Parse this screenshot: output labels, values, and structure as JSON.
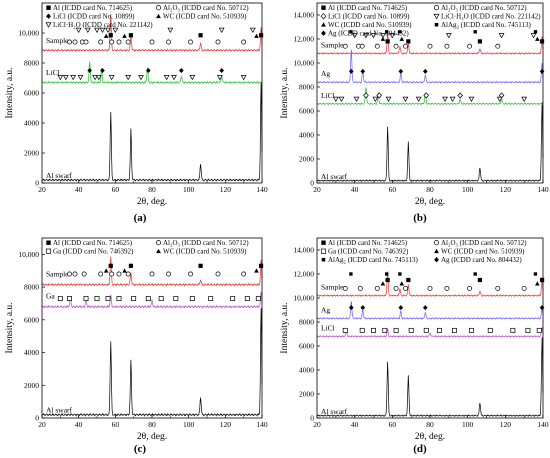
{
  "figure": {
    "colors": {
      "axis": "#000000",
      "al": "#000000",
      "sample": "#e8302c",
      "licl": "#22c42a",
      "ag": "#6a5cff",
      "ga": "#b34cc8"
    }
  },
  "chart_data": [
    {
      "panel": "(a)",
      "type": "line",
      "xlabel": "2θ, deg.",
      "ylabel": "Intensity, a.u.",
      "xlim": [
        20,
        140
      ],
      "ylim": [
        0,
        12000
      ],
      "xticks": [
        "20",
        "40",
        "60",
        "80",
        "100",
        "120",
        "140"
      ],
      "yticks": [
        "0",
        "2000",
        "4000",
        "6000",
        "8000",
        "10,000"
      ],
      "legend": [
        {
          "marker": "square",
          "text": "Al (ICDD card No. 714625)"
        },
        {
          "marker": "circle",
          "text": "Al₂O₃ (ICDD card No. 50712)"
        },
        {
          "marker": "diamond",
          "text": "LiCl (ICDD card No. 10899)"
        },
        {
          "marker": "triangle",
          "text": "WC (ICDD card No. 510939)"
        },
        {
          "marker": "triangle-down",
          "text": "LiCl·H₂O (ICDD card No. 221142)"
        }
      ],
      "series": [
        {
          "name": "Al swarf",
          "color_key": "al",
          "baseline": 200,
          "peaks": [
            [
              57.5,
              4550
            ],
            [
              68.5,
              3380
            ],
            [
              106.5,
              1100
            ],
            [
              139.5,
              6500
            ]
          ]
        },
        {
          "name": "Sample",
          "color_key": "sample",
          "baseline": 8850,
          "peaks": [
            [
              57.5,
              2400
            ],
            [
              68.5,
              1000
            ],
            [
              106.5,
              500
            ],
            [
              139.5,
              1500
            ]
          ]
        },
        {
          "name": "LiCl",
          "color_key": "licl",
          "baseline": 6700,
          "peaks": [
            [
              46,
              1400
            ],
            [
              52.5,
              900
            ],
            [
              77.5,
              1000
            ],
            [
              96,
              450
            ],
            [
              118,
              450
            ]
          ]
        }
      ],
      "markers": [
        {
          "marker": "square",
          "y": 9850,
          "x": [
            57.5,
            68.5,
            106.5,
            139.5
          ]
        },
        {
          "marker": "circle",
          "y": 9400,
          "x": [
            35,
            38,
            42,
            44,
            52,
            58,
            62,
            67,
            80,
            89,
            101,
            116,
            130
          ]
        },
        {
          "marker": "triangle-down",
          "y": 10200,
          "x": [
            40,
            45,
            50,
            53,
            56,
            60,
            90,
            118,
            135
          ]
        },
        {
          "marker": "triangle",
          "y": 9800,
          "x": [
            55,
            65,
            137
          ]
        },
        {
          "marker": "diamond",
          "y": 7500,
          "x": [
            46,
            53,
            78,
            96,
            118
          ]
        },
        {
          "marker": "triangle-down",
          "y": 7050,
          "x": [
            30,
            33,
            37,
            41,
            49,
            51,
            58,
            67,
            74,
            88,
            92,
            102,
            117,
            130
          ]
        }
      ]
    },
    {
      "panel": "(b)",
      "type": "line",
      "xlabel": "2θ, deg.",
      "ylabel": "Intensity, a.u.",
      "xlim": [
        20,
        140
      ],
      "ylim": [
        0,
        15000
      ],
      "xticks": [
        "20",
        "40",
        "60",
        "80",
        "100",
        "120",
        "140"
      ],
      "yticks": [
        "0",
        "2000",
        "4000",
        "6000",
        "8000",
        "10,000",
        "12,000",
        "14,000"
      ],
      "legend": [
        {
          "marker": "square",
          "text": "Al (ICDD card No. 714625)"
        },
        {
          "marker": "circle",
          "text": "Al₂O₃ (ICDD card No. 50712)"
        },
        {
          "marker": "diamond-open",
          "text": "LiCl (ICDD card No. 10899)"
        },
        {
          "marker": "triangle-down",
          "text": "LiCl·H₂O (ICDD card No. 221142)"
        },
        {
          "marker": "triangle",
          "text": "WC (ICDD card No. 510939)"
        },
        {
          "marker": "square-small",
          "text": "AlAg₂ (ICDD card No. 745113)"
        },
        {
          "marker": "diamond",
          "text": "Ag (ICDD card No. 804432)"
        }
      ],
      "series": [
        {
          "name": "Al swarf",
          "color_key": "al",
          "baseline": 200,
          "peaks": [
            [
              57.5,
              4500
            ],
            [
              68.5,
              3200
            ],
            [
              106.5,
              1100
            ],
            [
              139.5,
              6500
            ]
          ]
        },
        {
          "name": "Sample",
          "color_key": "sample",
          "baseline": 10800,
          "peaks": [
            [
              57.5,
              1800
            ],
            [
              64,
              600
            ],
            [
              68.5,
              800
            ],
            [
              106.5,
              400
            ],
            [
              139.5,
              1400
            ]
          ]
        },
        {
          "name": "Ag",
          "color_key": "ag",
          "baseline": 8400,
          "peaks": [
            [
              38.2,
              2800
            ],
            [
              44.3,
              1000
            ],
            [
              64.5,
              700
            ],
            [
              77.5,
              600
            ],
            [
              139.5,
              1600
            ]
          ]
        },
        {
          "name": "LiCl",
          "color_key": "licl",
          "baseline": 6600,
          "peaks": [
            [
              46,
              1400
            ],
            [
              52.5,
              900
            ],
            [
              77.5,
              900
            ],
            [
              96,
              400
            ],
            [
              118,
              400
            ]
          ]
        }
      ],
      "markers": [
        {
          "marker": "square",
          "y": 11800,
          "x": [
            57.5,
            68.5,
            106.5,
            139.5
          ]
        },
        {
          "marker": "circle",
          "y": 11400,
          "x": [
            35,
            42,
            44,
            52,
            62,
            67,
            80,
            89,
            101,
            116
          ]
        },
        {
          "marker": "triangle-down",
          "y": 12300,
          "x": [
            40,
            46,
            50,
            55,
            60,
            90,
            118,
            135
          ]
        },
        {
          "marker": "triangle",
          "y": 12000,
          "x": [
            55,
            65,
            137
          ]
        },
        {
          "marker": "square-small",
          "y": 12600,
          "x": [
            38,
            57,
            64,
            104,
            136
          ]
        },
        {
          "marker": "diamond",
          "y": 9300,
          "x": [
            38.2,
            44.3,
            64.5,
            77.5,
            139.5
          ]
        },
        {
          "marker": "diamond-open",
          "y": 7300,
          "x": [
            46,
            53,
            78,
            96,
            118
          ]
        },
        {
          "marker": "triangle-down",
          "y": 7000,
          "x": [
            30,
            33,
            41,
            51,
            58,
            67,
            74,
            88,
            92,
            102,
            117,
            130
          ]
        }
      ]
    },
    {
      "panel": "(c)",
      "type": "line",
      "xlabel": "2θ, deg.",
      "ylabel": "Intensity, a.u.",
      "xlim": [
        20,
        140
      ],
      "ylim": [
        0,
        11000
      ],
      "xticks": [
        "20",
        "40",
        "60",
        "80",
        "100",
        "120",
        "140"
      ],
      "yticks": [
        "0",
        "2000",
        "4000",
        "6000",
        "8000",
        "10,000"
      ],
      "legend": [
        {
          "marker": "square",
          "text": "Al (ICDD card No. 714625)"
        },
        {
          "marker": "circle",
          "text": "Al₂O₃ (ICDD card No. 50712)"
        },
        {
          "marker": "square-open",
          "text": "Ga (ICDD card No. 746392)"
        },
        {
          "marker": "triangle",
          "text": "WC (ICDD card No. 510939)"
        }
      ],
      "series": [
        {
          "name": "Al swarf",
          "color_key": "al",
          "baseline": 200,
          "peaks": [
            [
              57.5,
              4500
            ],
            [
              68.5,
              3300
            ],
            [
              106.5,
              1100
            ],
            [
              139.5,
              6500
            ]
          ]
        },
        {
          "name": "Sample",
          "color_key": "sample",
          "baseline": 8150,
          "peaks": [
            [
              57.5,
              1700
            ],
            [
              68.5,
              700
            ],
            [
              106.5,
              300
            ],
            [
              139.5,
              1500
            ]
          ]
        },
        {
          "name": "Ga",
          "color_key": "ga",
          "baseline": 6800,
          "peaks": [
            [
              35.5,
              600
            ],
            [
              44,
              500
            ],
            [
              57.5,
              700
            ],
            [
              80,
              400
            ],
            [
              139.5,
              900
            ]
          ]
        }
      ],
      "markers": [
        {
          "marker": "square",
          "y": 9300,
          "x": [
            57.5,
            68.5,
            106.5,
            139.5
          ]
        },
        {
          "marker": "circle",
          "y": 8800,
          "x": [
            35,
            38,
            43,
            52,
            58,
            62,
            67,
            80,
            89,
            101,
            116,
            130
          ]
        },
        {
          "marker": "triangle",
          "y": 9000,
          "x": [
            55,
            65,
            137
          ]
        },
        {
          "marker": "square-open",
          "y": 7300,
          "x": [
            30,
            35,
            44,
            50,
            56,
            62,
            70,
            78,
            85,
            93,
            102,
            112,
            124,
            132,
            138
          ]
        }
      ]
    },
    {
      "panel": "(d)",
      "type": "line",
      "xlabel": "2θ, deg.",
      "ylabel": "Intensity, a.u.",
      "xlim": [
        20,
        140
      ],
      "ylim": [
        0,
        15000
      ],
      "xticks": [
        "20",
        "40",
        "60",
        "80",
        "100",
        "120",
        "140"
      ],
      "yticks": [
        "0",
        "2000",
        "4000",
        "6000",
        "8000",
        "10,000",
        "12,000",
        "14,000"
      ],
      "legend": [
        {
          "marker": "square",
          "text": "Al (ICDD card No. 714625)"
        },
        {
          "marker": "circle",
          "text": "Al₂O₃ (ICDD card No. 50712)"
        },
        {
          "marker": "square-open",
          "text": "Ga (ICDD card No. 746392)"
        },
        {
          "marker": "triangle",
          "text": "WC (ICDD card No. 510939)"
        },
        {
          "marker": "square-small",
          "text": "AlAg₂ (ICDD card No. 745113)"
        },
        {
          "marker": "diamond",
          "text": "Ag (ICDD card No. 804432)"
        }
      ],
      "series": [
        {
          "name": "Al swarf",
          "color_key": "al",
          "baseline": 200,
          "peaks": [
            [
              57.5,
              4500
            ],
            [
              68.5,
              3300
            ],
            [
              106.5,
              1100
            ],
            [
              139.5,
              6500
            ]
          ]
        },
        {
          "name": "Sample",
          "color_key": "sample",
          "baseline": 10200,
          "peaks": [
            [
              57.5,
              2000
            ],
            [
              64,
              600
            ],
            [
              68.5,
              900
            ],
            [
              106.5,
              400
            ],
            [
              139.5,
              1500
            ]
          ]
        },
        {
          "name": "Ag",
          "color_key": "ag",
          "baseline": 8300,
          "peaks": [
            [
              38.2,
              1500
            ],
            [
              44.3,
              700
            ],
            [
              64.5,
              600
            ],
            [
              77.5,
              500
            ],
            [
              139.5,
              1000
            ]
          ]
        },
        {
          "name": "LiCl",
          "color_key": "ga",
          "baseline": 6800,
          "peaks": [
            [
              35.5,
              500
            ],
            [
              57.5,
              600
            ],
            [
              80,
              300
            ],
            [
              139.5,
              800
            ]
          ]
        }
      ],
      "markers": [
        {
          "marker": "square",
          "y": 11500,
          "x": [
            57.5,
            68.5,
            106.5,
            139.5
          ]
        },
        {
          "marker": "circle",
          "y": 10800,
          "x": [
            35,
            43,
            52,
            62,
            67,
            80,
            89,
            101,
            116,
            130
          ]
        },
        {
          "marker": "triangle",
          "y": 11200,
          "x": [
            55,
            65,
            137
          ]
        },
        {
          "marker": "square-small",
          "y": 12000,
          "x": [
            38,
            57,
            64,
            104,
            136
          ]
        },
        {
          "marker": "diamond",
          "y": 9200,
          "x": [
            38.2,
            44.3,
            64.5,
            77.5,
            139.5
          ]
        },
        {
          "marker": "square-open",
          "y": 7300,
          "x": [
            35,
            44,
            50,
            56,
            62,
            70,
            78,
            85,
            93,
            102,
            112,
            124,
            132,
            138
          ]
        }
      ]
    }
  ]
}
